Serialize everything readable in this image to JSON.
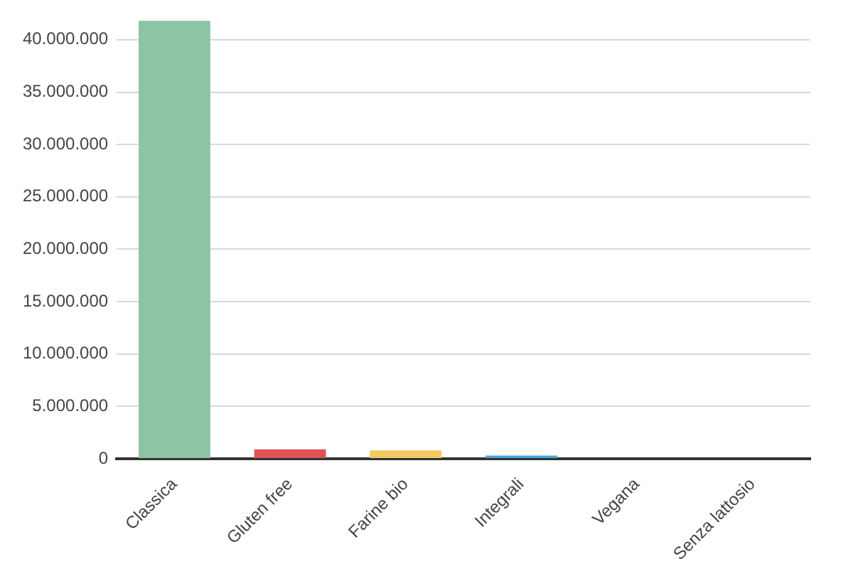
{
  "chart_data": {
    "type": "bar",
    "categories": [
      "Classica",
      "Gluten free",
      "Farine bio",
      "Integrali",
      "Vegana",
      "Senza lattosio"
    ],
    "values": [
      41800000,
      900000,
      800000,
      300000,
      0,
      0
    ],
    "colors": [
      "#8cc4a4",
      "#e05257",
      "#f2c963",
      "#4aa7df",
      "#9e9e9e",
      "#9e9e9e"
    ],
    "ylim": [
      0,
      42000000
    ],
    "yticks": [
      0,
      {
        "value": 5000000,
        "label": "5.000.000"
      },
      {
        "value": 10000000,
        "label": "10.000.000"
      },
      {
        "value": 15000000,
        "label": "15.000.000"
      },
      {
        "value": 20000000,
        "label": "20.000.000"
      },
      {
        "value": 25000000,
        "label": "25.000.000"
      },
      {
        "value": 30000000,
        "label": "30.000.000"
      },
      {
        "value": 35000000,
        "label": "35.000.000"
      },
      {
        "value": 40000000,
        "label": "40.000.000"
      }
    ],
    "grid": "y"
  }
}
